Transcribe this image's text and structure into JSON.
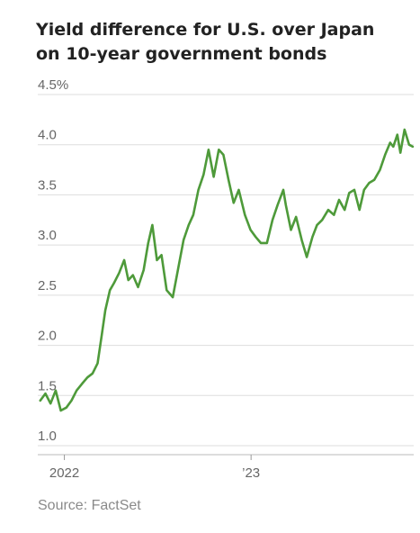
{
  "chart_data": {
    "type": "line",
    "title": "Yield difference for U.S. over Japan on 10-year government bonds",
    "source": "Source: FactSet",
    "xlabel": "",
    "ylabel": "",
    "ylim": [
      1.0,
      4.5
    ],
    "xlim": [
      "2021-11-10",
      "2023-11-15"
    ],
    "y_ticks": [
      1.0,
      1.5,
      2.0,
      2.5,
      3.0,
      3.5,
      4.0,
      4.5
    ],
    "y_tick_labels": [
      "1.0",
      "1.5",
      "2.0",
      "2.5",
      "3.0",
      "3.5",
      "4.0",
      "4.5%"
    ],
    "x_ticks": [
      {
        "date": "2022-01-01",
        "label": "2022"
      },
      {
        "date": "2023-01-01",
        "label": "’23"
      }
    ],
    "grid": true,
    "line_color": "#4e9a3a",
    "series": [
      {
        "name": "",
        "x": [
          "2021-11-15",
          "2021-11-25",
          "2021-12-05",
          "2021-12-15",
          "2021-12-25",
          "2022-01-05",
          "2022-01-15",
          "2022-01-25",
          "2022-02-05",
          "2022-02-15",
          "2022-02-25",
          "2022-03-07",
          "2022-03-15",
          "2022-03-22",
          "2022-03-31",
          "2022-04-08",
          "2022-04-18",
          "2022-04-28",
          "2022-05-06",
          "2022-05-15",
          "2022-05-25",
          "2022-06-05",
          "2022-06-14",
          "2022-06-22",
          "2022-07-01",
          "2022-07-10",
          "2022-07-20",
          "2022-08-01",
          "2022-08-12",
          "2022-08-22",
          "2022-09-01",
          "2022-09-10",
          "2022-09-20",
          "2022-09-30",
          "2022-10-10",
          "2022-10-20",
          "2022-10-30",
          "2022-11-08",
          "2022-11-18",
          "2022-11-28",
          "2022-12-08",
          "2022-12-20",
          "2022-12-31",
          "2023-01-10",
          "2023-01-20",
          "2023-02-01",
          "2023-02-12",
          "2023-02-22",
          "2023-03-05",
          "2023-03-10",
          "2023-03-20",
          "2023-03-30",
          "2023-04-10",
          "2023-04-20",
          "2023-05-01",
          "2023-05-10",
          "2023-05-20",
          "2023-06-01",
          "2023-06-12",
          "2023-06-22",
          "2023-07-03",
          "2023-07-12",
          "2023-07-22",
          "2023-08-01",
          "2023-08-10",
          "2023-08-20",
          "2023-08-30",
          "2023-09-10",
          "2023-09-20",
          "2023-09-30",
          "2023-10-06",
          "2023-10-14",
          "2023-10-20",
          "2023-10-28",
          "2023-11-06",
          "2023-11-13"
        ],
        "values": [
          1.45,
          1.52,
          1.42,
          1.55,
          1.35,
          1.38,
          1.45,
          1.55,
          1.62,
          1.68,
          1.72,
          1.82,
          2.1,
          2.35,
          2.55,
          2.62,
          2.72,
          2.85,
          2.65,
          2.7,
          2.58,
          2.75,
          3.02,
          3.2,
          2.85,
          2.9,
          2.55,
          2.48,
          2.78,
          3.05,
          3.2,
          3.3,
          3.55,
          3.7,
          3.95,
          3.68,
          3.95,
          3.9,
          3.65,
          3.42,
          3.55,
          3.3,
          3.15,
          3.08,
          3.02,
          3.02,
          3.25,
          3.4,
          3.55,
          3.4,
          3.15,
          3.28,
          3.05,
          2.88,
          3.08,
          3.2,
          3.25,
          3.35,
          3.3,
          3.45,
          3.35,
          3.52,
          3.55,
          3.35,
          3.55,
          3.62,
          3.65,
          3.75,
          3.9,
          4.02,
          3.98,
          4.1,
          3.92,
          4.15,
          4.0,
          3.98
        ]
      }
    ]
  }
}
